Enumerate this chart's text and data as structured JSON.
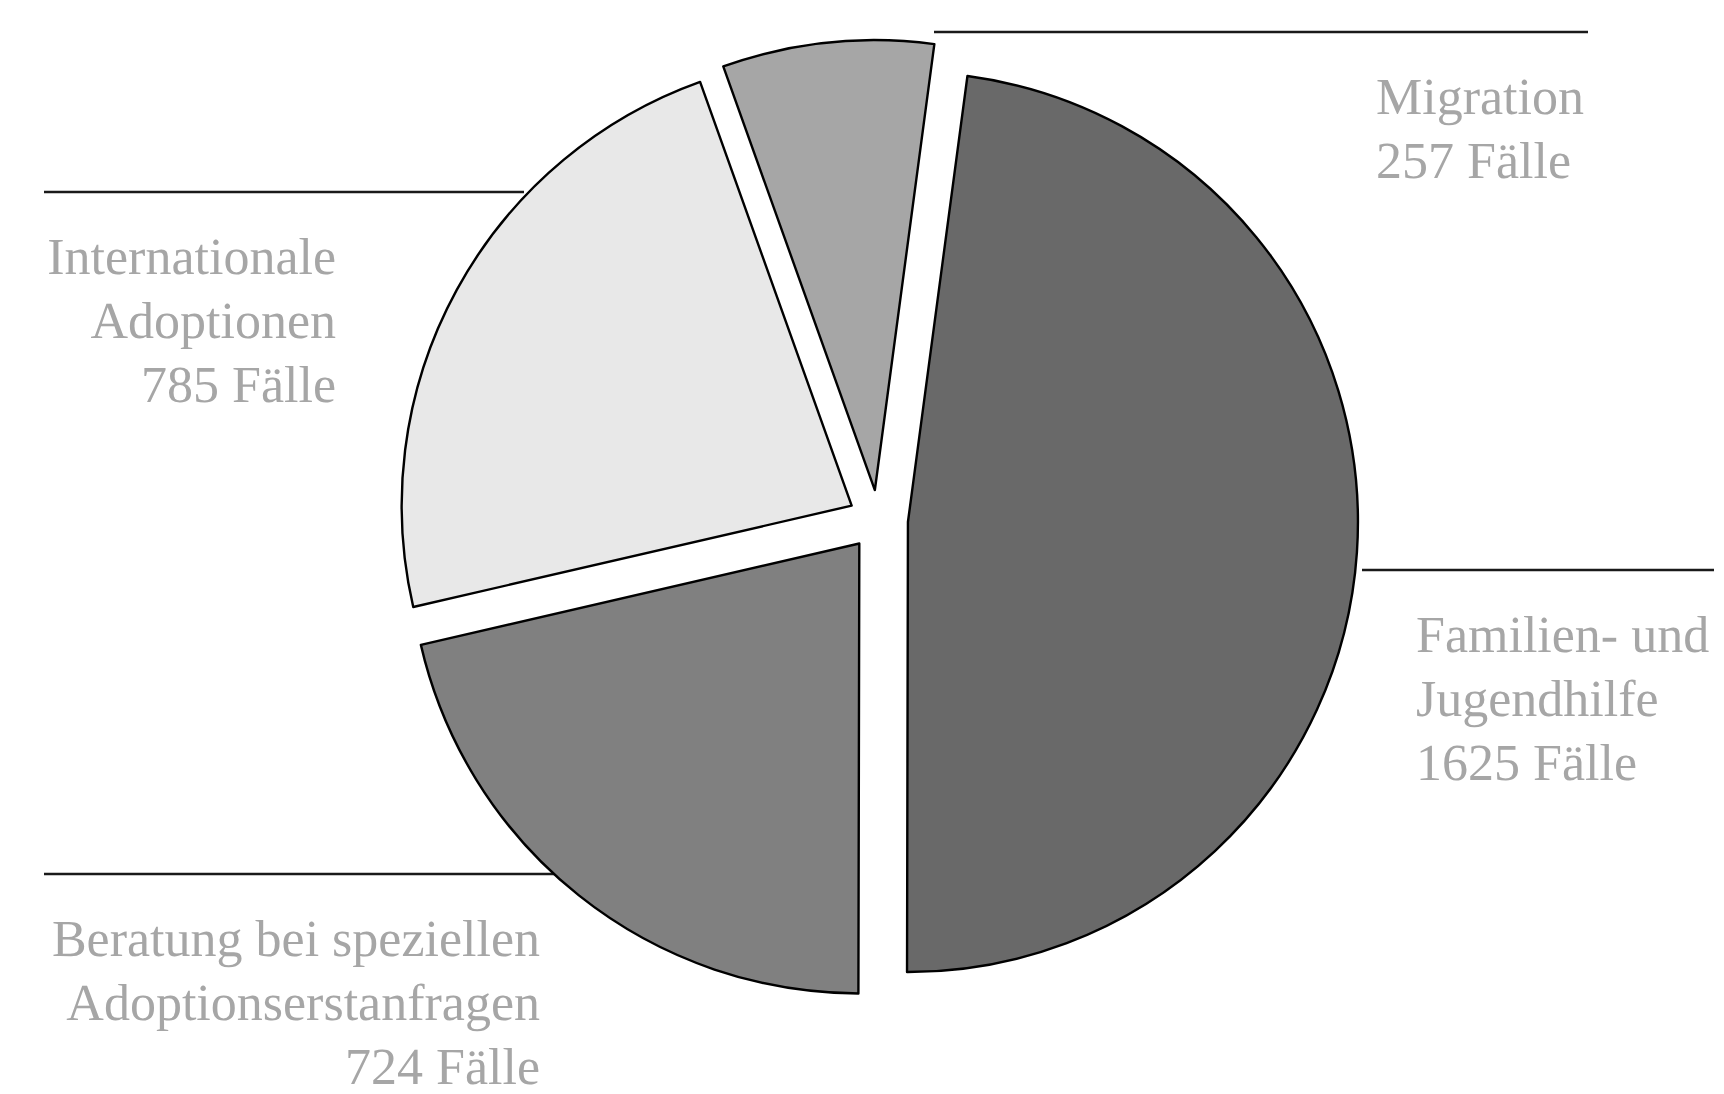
{
  "chart_data": {
    "type": "pie",
    "categories": [
      "Familien- und Jugendhilfe",
      "Beratung bei speziellen Adoptionserstanfragen",
      "Internationale Adoptionen",
      "Migration"
    ],
    "values": [
      1625,
      724,
      785,
      257
    ],
    "colors": [
      "#696969",
      "#808080",
      "#e8e8e8",
      "#a6a6a6"
    ],
    "value_labels": [
      "1625 Fälle",
      "724 Fälle",
      "785 Fälle",
      "257 Fälle"
    ]
  }
}
